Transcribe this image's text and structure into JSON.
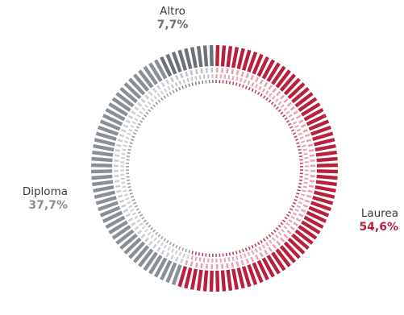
{
  "chart_data": {
    "type": "pie",
    "style": "radial dashed donut",
    "segments": [
      {
        "label": "Laurea",
        "value": 54.6,
        "value_label": "54,6%",
        "color": "#b8203c",
        "light_color": "#e6a3ad"
      },
      {
        "label": "Diploma",
        "value": 37.7,
        "value_label": "37,7%",
        "color": "#8a8f96",
        "light_color": "#cbced2"
      },
      {
        "label": "Altro",
        "value": 7.7,
        "value_label": "7,7%",
        "color": "#6d7279",
        "light_color": "#c0c3c7"
      }
    ],
    "start": "top",
    "direction": "clockwise",
    "legend": "none"
  },
  "labels": {
    "laurea": {
      "name": "Laurea",
      "pct": "54,6%"
    },
    "diploma": {
      "name": "Diploma",
      "pct": "37,7%"
    },
    "altro": {
      "name": "Altro",
      "pct": "7,7%"
    }
  },
  "colors": {
    "laurea_text": "#b8203c",
    "diploma_text": "#8a8f96",
    "altro_text": "#6d7279"
  }
}
